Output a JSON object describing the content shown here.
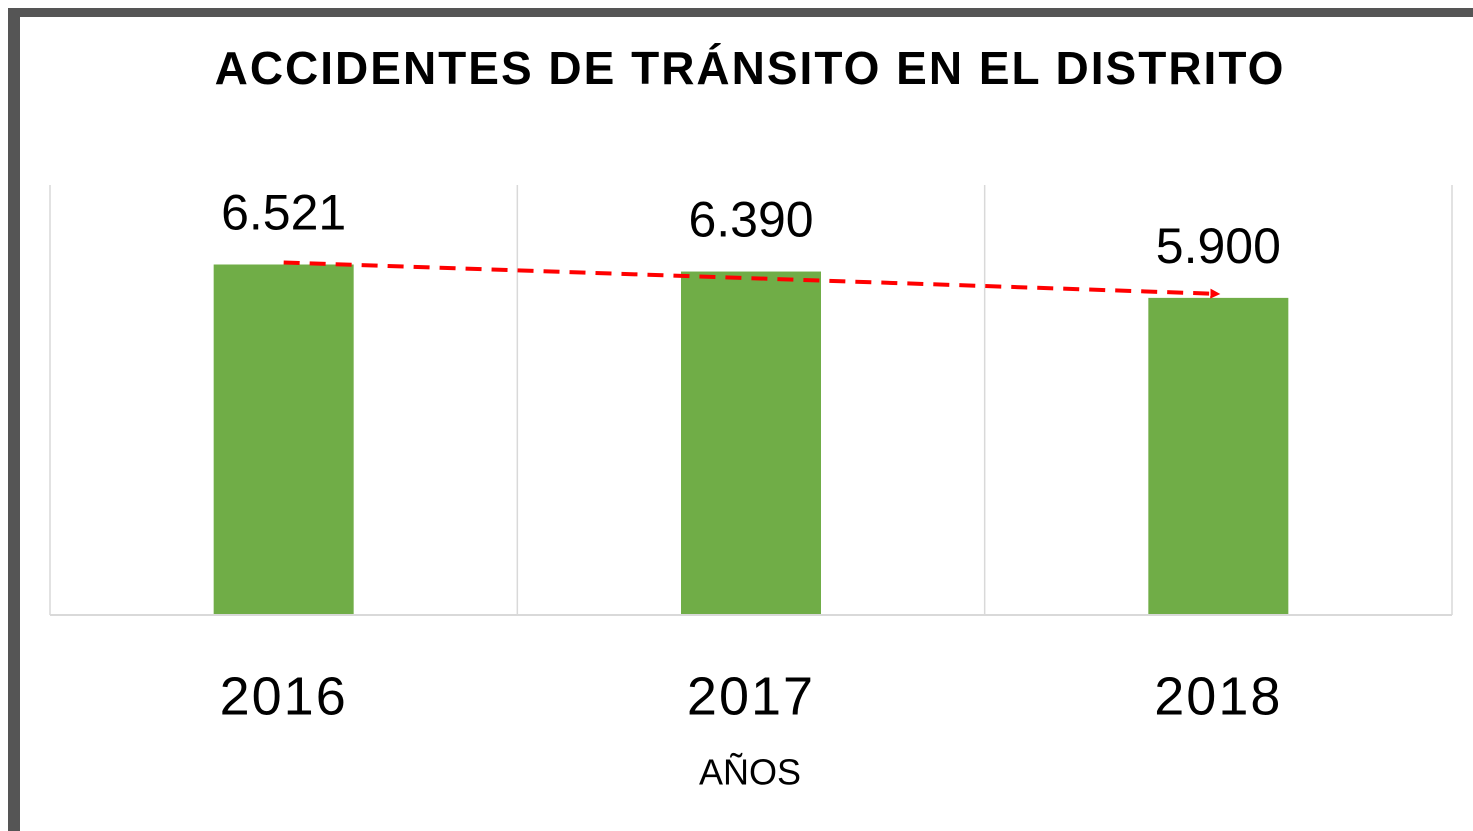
{
  "chart_data": {
    "type": "bar",
    "title": "ACCIDENTES DE TRÁNSITO EN EL DISTRITO",
    "x_label": "AÑOS",
    "categories": [
      "2016",
      "2017",
      "2018"
    ],
    "values": [
      6521,
      6390,
      5900
    ],
    "value_labels": [
      "6.521",
      "6.390",
      "5.900"
    ],
    "color": "#70ad47",
    "trend_color": "#ff0000",
    "ylim": [
      0,
      8000
    ]
  }
}
